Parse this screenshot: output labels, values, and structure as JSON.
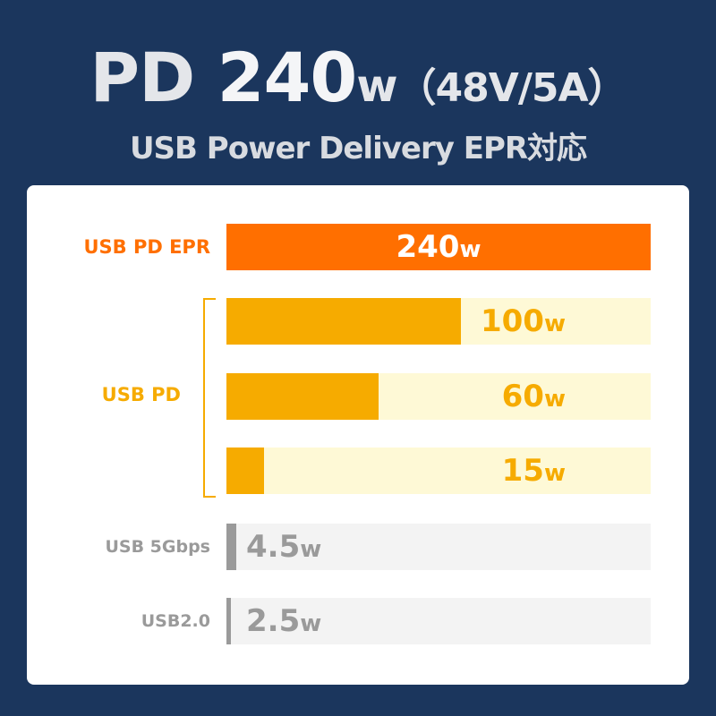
{
  "header": {
    "title_prefix": "PD ",
    "title_value": "240",
    "title_unit": "w",
    "title_spec": "（48V/5A）",
    "subtitle": "USB Power Delivery EPR対応"
  },
  "colors": {
    "background": "#1b365d",
    "epr": "#ff6f00",
    "pd": "#f6ab00",
    "pd_track": "#fef9d6",
    "legacy": "#9a9a9a",
    "legacy_track": "#f3f3f3"
  },
  "chart_data": {
    "type": "bar",
    "orientation": "horizontal",
    "group_label": "USB PD",
    "categories": [
      "USB PD EPR",
      "USB PD",
      "USB PD",
      "USB PD",
      "USB 5Gbps",
      "USB2.0"
    ],
    "values": [
      240,
      100,
      60,
      15,
      4.5,
      2.5
    ],
    "value_labels": [
      {
        "n": "240",
        "u": "w"
      },
      {
        "n": "100",
        "u": "w"
      },
      {
        "n": "60",
        "u": "w"
      },
      {
        "n": "15",
        "u": "w"
      },
      {
        "n": "4.5",
        "u": "w"
      },
      {
        "n": "2.5",
        "u": "w"
      }
    ],
    "fill_fraction": [
      1,
      0.553,
      0.359,
      0.089,
      0.021,
      0.01
    ],
    "unit": "w",
    "grid": false
  }
}
